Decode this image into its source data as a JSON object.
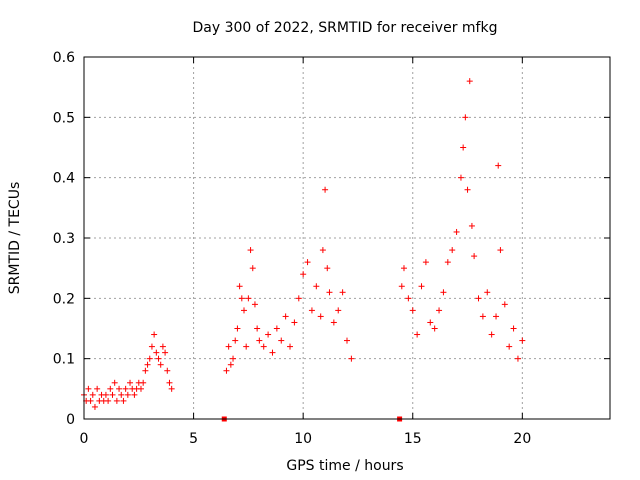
{
  "chart_data": {
    "type": "scatter",
    "title": "Day 300 of 2022, SRMTID for receiver mfkg",
    "xlabel": "GPS time / hours",
    "ylabel": "SRMTID / TECUs",
    "xlim": [
      0,
      24
    ],
    "ylim": [
      0,
      0.6
    ],
    "x_ticks": [
      0,
      5,
      10,
      15,
      20
    ],
    "y_ticks": [
      0,
      0.1,
      0.2,
      0.3,
      0.4,
      0.5,
      0.6
    ],
    "x_tick_labels": [
      "0",
      "5",
      "10",
      "15",
      "20"
    ],
    "y_tick_labels": [
      "0",
      "0.1",
      "0.2",
      "0.3",
      "0.4",
      "0.5",
      "0.6"
    ],
    "grid": true,
    "marker": "+",
    "color": "#ff0000",
    "series": [
      {
        "name": "SRMTID",
        "x": [
          0.0,
          0.1,
          0.2,
          0.3,
          0.4,
          0.5,
          0.6,
          0.7,
          0.8,
          0.9,
          1.0,
          1.1,
          1.2,
          1.3,
          1.4,
          1.5,
          1.6,
          1.7,
          1.8,
          1.9,
          2.0,
          2.1,
          2.2,
          2.3,
          2.4,
          2.5,
          2.6,
          2.7,
          2.8,
          2.9,
          3.0,
          3.1,
          3.2,
          3.3,
          3.4,
          3.5,
          3.6,
          3.7,
          3.8,
          3.9,
          4.0,
          6.5,
          6.6,
          6.7,
          6.8,
          6.9,
          7.0,
          7.1,
          7.2,
          7.3,
          7.4,
          7.5,
          7.6,
          7.7,
          7.8,
          7.9,
          8.0,
          8.2,
          8.4,
          8.6,
          8.8,
          9.0,
          9.2,
          9.4,
          9.6,
          9.8,
          10.0,
          10.2,
          10.4,
          10.6,
          10.8,
          10.9,
          11.0,
          11.1,
          11.2,
          11.4,
          11.6,
          11.8,
          12.0,
          12.2,
          14.5,
          14.6,
          14.8,
          15.0,
          15.2,
          15.4,
          15.6,
          15.8,
          16.0,
          16.2,
          16.4,
          16.6,
          16.8,
          17.0,
          17.2,
          17.3,
          17.4,
          17.5,
          17.6,
          17.7,
          17.8,
          18.0,
          18.2,
          18.4,
          18.6,
          18.8,
          18.9,
          19.0,
          19.2,
          19.4,
          19.6,
          19.8,
          20.0
        ],
        "y": [
          0.04,
          0.03,
          0.05,
          0.03,
          0.04,
          0.02,
          0.05,
          0.03,
          0.04,
          0.03,
          0.04,
          0.03,
          0.05,
          0.04,
          0.06,
          0.03,
          0.05,
          0.04,
          0.03,
          0.05,
          0.04,
          0.06,
          0.05,
          0.04,
          0.05,
          0.06,
          0.05,
          0.06,
          0.08,
          0.09,
          0.1,
          0.12,
          0.14,
          0.11,
          0.1,
          0.09,
          0.12,
          0.11,
          0.08,
          0.06,
          0.05,
          0.08,
          0.12,
          0.09,
          0.1,
          0.13,
          0.15,
          0.22,
          0.2,
          0.18,
          0.12,
          0.2,
          0.28,
          0.25,
          0.19,
          0.15,
          0.13,
          0.12,
          0.14,
          0.11,
          0.15,
          0.13,
          0.17,
          0.12,
          0.16,
          0.2,
          0.24,
          0.26,
          0.18,
          0.22,
          0.17,
          0.28,
          0.38,
          0.25,
          0.21,
          0.16,
          0.18,
          0.21,
          0.13,
          0.1,
          0.22,
          0.25,
          0.2,
          0.18,
          0.14,
          0.22,
          0.26,
          0.16,
          0.15,
          0.18,
          0.21,
          0.26,
          0.28,
          0.31,
          0.4,
          0.45,
          0.5,
          0.38,
          0.56,
          0.32,
          0.27,
          0.2,
          0.17,
          0.21,
          0.14,
          0.17,
          0.42,
          0.28,
          0.19,
          0.12,
          0.15,
          0.1,
          0.13
        ]
      },
      {
        "name": "zero-level markers",
        "x": [
          6.4,
          14.4
        ],
        "y": [
          0,
          0
        ]
      }
    ]
  }
}
